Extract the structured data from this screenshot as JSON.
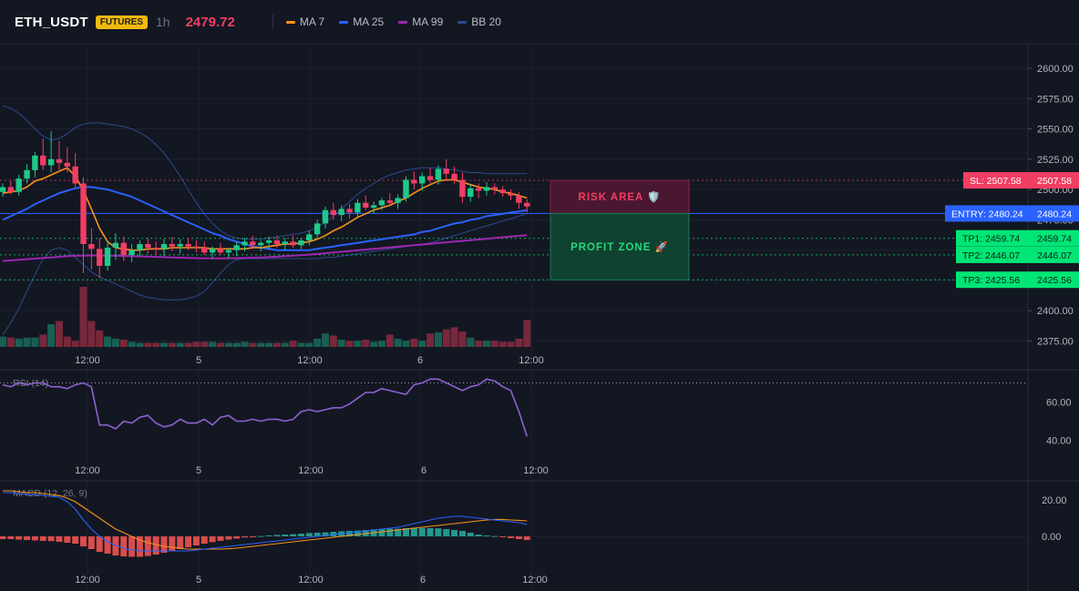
{
  "header": {
    "symbol": "ETH_USDT",
    "market_badge": "FUTURES",
    "timeframe": "1h",
    "last_price": "2479.72"
  },
  "legend": [
    {
      "label": "MA 7",
      "color": "#f7931a"
    },
    {
      "label": "MA 25",
      "color": "#2962ff"
    },
    {
      "label": "MA 99",
      "color": "#9c27b0"
    },
    {
      "label": "BB 20",
      "color": "#2b4a8b"
    }
  ],
  "zones": {
    "risk_label": "RISK AREA 🛡️",
    "profit_label": "PROFIT ZONE 🚀"
  },
  "colors": {
    "up": "#1ec98a",
    "down": "#f23e63",
    "ma7": "#f7931a",
    "ma25": "#2962ff",
    "ma99": "#9c27b0",
    "bb": "#2b4a8b",
    "rsi": "#8d62d1",
    "macd_line": "#2962ff",
    "signal_line": "#f7931a"
  },
  "chart_data": [
    {
      "type": "candlestick",
      "title": "ETH_USDT 1h",
      "x_ticks": [
        "12:00",
        "5",
        "12:00",
        "6",
        "12:00"
      ],
      "y_ticks": [
        "2600.00",
        "2575.00",
        "2550.00",
        "2525.00",
        "2500.00",
        "2475.00",
        "2450.00",
        "2425.00",
        "2400.00",
        "2375.00"
      ],
      "ylim": [
        2365,
        2610
      ],
      "candles": [
        [
          2498,
          2505,
          2494,
          2502
        ],
        [
          2502,
          2507,
          2496,
          2498
        ],
        [
          2498,
          2512,
          2495,
          2509
        ],
        [
          2509,
          2521,
          2505,
          2516
        ],
        [
          2516,
          2531,
          2510,
          2528
        ],
        [
          2528,
          2542,
          2516,
          2520
        ],
        [
          2520,
          2548,
          2514,
          2525
        ],
        [
          2525,
          2540,
          2515,
          2522
        ],
        [
          2522,
          2535,
          2514,
          2519
        ],
        [
          2519,
          2530,
          2502,
          2505
        ],
        [
          2505,
          2510,
          2431,
          2455
        ],
        [
          2455,
          2468,
          2434,
          2451
        ],
        [
          2451,
          2460,
          2427,
          2437
        ],
        [
          2437,
          2458,
          2433,
          2452
        ],
        [
          2452,
          2464,
          2442,
          2456
        ],
        [
          2456,
          2461,
          2441,
          2446
        ],
        [
          2446,
          2455,
          2440,
          2450
        ],
        [
          2450,
          2458,
          2445,
          2455
        ],
        [
          2455,
          2460,
          2447,
          2452
        ],
        [
          2452,
          2457,
          2446,
          2451
        ],
        [
          2451,
          2459,
          2445,
          2455
        ],
        [
          2455,
          2461,
          2449,
          2453
        ],
        [
          2453,
          2459,
          2447,
          2455
        ],
        [
          2455,
          2460,
          2450,
          2453
        ],
        [
          2453,
          2458,
          2448,
          2452
        ],
        [
          2452,
          2457,
          2446,
          2448
        ],
        [
          2448,
          2453,
          2443,
          2451
        ],
        [
          2451,
          2456,
          2446,
          2448
        ],
        [
          2448,
          2452,
          2443,
          2450
        ],
        [
          2450,
          2457,
          2445,
          2454
        ],
        [
          2454,
          2460,
          2449,
          2457
        ],
        [
          2457,
          2462,
          2451,
          2454
        ],
        [
          2454,
          2458,
          2449,
          2456
        ],
        [
          2456,
          2461,
          2451,
          2458
        ],
        [
          2458,
          2462,
          2452,
          2455
        ],
        [
          2455,
          2460,
          2450,
          2457
        ],
        [
          2457,
          2462,
          2452,
          2454
        ],
        [
          2454,
          2460,
          2451,
          2458
        ],
        [
          2458,
          2466,
          2454,
          2463
        ],
        [
          2463,
          2475,
          2459,
          2472
        ],
        [
          2472,
          2486,
          2468,
          2483
        ],
        [
          2483,
          2489,
          2475,
          2479
        ],
        [
          2479,
          2487,
          2474,
          2484
        ],
        [
          2484,
          2488,
          2476,
          2481
        ],
        [
          2481,
          2492,
          2477,
          2489
        ],
        [
          2489,
          2495,
          2483,
          2485
        ],
        [
          2485,
          2490,
          2480,
          2487
        ],
        [
          2487,
          2493,
          2483,
          2491
        ],
        [
          2491,
          2497,
          2486,
          2489
        ],
        [
          2489,
          2496,
          2484,
          2493
        ],
        [
          2493,
          2511,
          2490,
          2508
        ],
        [
          2508,
          2515,
          2500,
          2505
        ],
        [
          2505,
          2514,
          2499,
          2511
        ],
        [
          2511,
          2518,
          2505,
          2508
        ],
        [
          2508,
          2520,
          2504,
          2517
        ],
        [
          2517,
          2525,
          2507,
          2513
        ],
        [
          2513,
          2519,
          2505,
          2508
        ],
        [
          2508,
          2514,
          2489,
          2494
        ],
        [
          2494,
          2504,
          2490,
          2501
        ],
        [
          2501,
          2505,
          2493,
          2499
        ],
        [
          2499,
          2506,
          2495,
          2502
        ],
        [
          2502,
          2505,
          2496,
          2500
        ],
        [
          2500,
          2503,
          2494,
          2497
        ],
        [
          2497,
          2500,
          2491,
          2495
        ],
        [
          2495,
          2498,
          2484,
          2489
        ],
        [
          2489,
          2492,
          2481,
          2486
        ]
      ],
      "ma7": [
        2497,
        2498,
        2499,
        2502,
        2507,
        2509,
        2512,
        2515,
        2518,
        2511,
        2499,
        2484,
        2468,
        2457,
        2452,
        2451,
        2450,
        2450,
        2451,
        2451,
        2451,
        2452,
        2452,
        2452,
        2452,
        2452,
        2451,
        2451,
        2451,
        2451,
        2451,
        2452,
        2452,
        2453,
        2454,
        2455,
        2455,
        2456,
        2457,
        2459,
        2462,
        2466,
        2469,
        2473,
        2477,
        2480,
        2483,
        2485,
        2487,
        2490,
        2493,
        2497,
        2501,
        2504,
        2507,
        2508,
        2508,
        2506,
        2504,
        2502,
        2501,
        2500,
        2498,
        2497,
        2495,
        2493
      ],
      "ma25": [
        2475,
        2478,
        2481,
        2484,
        2488,
        2491,
        2494,
        2497,
        2499,
        2501,
        2502,
        2502,
        2501,
        2500,
        2498,
        2496,
        2494,
        2491,
        2488,
        2485,
        2482,
        2479,
        2476,
        2473,
        2470,
        2467,
        2464,
        2462,
        2459,
        2457,
        2455,
        2453,
        2452,
        2451,
        2450,
        2450,
        2450,
        2450,
        2450,
        2451,
        2452,
        2453,
        2454,
        2455,
        2456,
        2457,
        2458,
        2459,
        2460,
        2461,
        2462,
        2463,
        2465,
        2466,
        2468,
        2470,
        2472,
        2473,
        2475,
        2476,
        2478,
        2479,
        2480,
        2481,
        2482,
        2483
      ],
      "ma99": [
        2441,
        2441.5,
        2442,
        2442.5,
        2443,
        2443.5,
        2444,
        2444.5,
        2445,
        2445.3,
        2445.5,
        2445.6,
        2445.6,
        2445.5,
        2445.4,
        2445.2,
        2445,
        2444.8,
        2444.6,
        2444.4,
        2444.2,
        2444,
        2443.8,
        2443.6,
        2443.4,
        2443.3,
        2443.2,
        2443.2,
        2443.3,
        2443.4,
        2443.6,
        2443.8,
        2444,
        2444.3,
        2444.6,
        2445,
        2445.4,
        2445.8,
        2446.3,
        2446.8,
        2447.4,
        2448,
        2448.6,
        2449.2,
        2449.8,
        2450.4,
        2451,
        2451.6,
        2452.2,
        2452.8,
        2453.4,
        2454,
        2454.6,
        2455.2,
        2455.8,
        2456.4,
        2457,
        2457.6,
        2458.2,
        2458.8,
        2459.4,
        2460,
        2460.6,
        2461.2,
        2461.8,
        2462.4
      ],
      "bb_upper": [
        2569,
        2567,
        2563,
        2557,
        2550,
        2544,
        2541,
        2542,
        2546,
        2551,
        2554,
        2555,
        2555,
        2554,
        2553,
        2552,
        2550,
        2547,
        2543,
        2537,
        2530,
        2521,
        2511,
        2500,
        2489,
        2480,
        2472,
        2466,
        2462,
        2460,
        2459,
        2459,
        2459,
        2460,
        2461,
        2462,
        2463,
        2464,
        2466,
        2469,
        2473,
        2478,
        2484,
        2490,
        2496,
        2501,
        2505,
        2509,
        2512,
        2514,
        2516,
        2517,
        2518,
        2518,
        2518,
        2517,
        2516,
        2515,
        2514,
        2514,
        2513,
        2513,
        2513,
        2513,
        2513,
        2513
      ],
      "bb_lower": [
        2380,
        2390,
        2402,
        2416,
        2430,
        2443,
        2450,
        2452,
        2450,
        2444,
        2438,
        2432,
        2428,
        2425,
        2422,
        2419,
        2416,
        2413,
        2411,
        2410,
        2409,
        2409,
        2409,
        2410,
        2412,
        2416,
        2423,
        2431,
        2438,
        2442,
        2443,
        2443,
        2443,
        2443,
        2443,
        2443,
        2443,
        2443,
        2443,
        2443,
        2444,
        2444,
        2445,
        2446,
        2447,
        2448,
        2449,
        2450,
        2451,
        2452,
        2453,
        2454,
        2455,
        2456,
        2458,
        2460,
        2462,
        2464,
        2466,
        2468,
        2470,
        2472,
        2474,
        2476,
        2478,
        2480
      ],
      "volume": [
        10,
        9,
        8,
        9,
        9,
        12,
        22,
        25,
        10,
        6,
        58,
        25,
        16,
        10,
        8,
        7,
        5,
        4,
        4,
        4,
        4,
        4,
        4,
        4,
        5,
        5,
        5,
        4,
        4,
        4,
        5,
        4,
        4,
        4,
        4,
        4,
        6,
        4,
        4,
        8,
        13,
        11,
        7,
        6,
        6,
        7,
        5,
        6,
        12,
        8,
        6,
        8,
        6,
        13,
        14,
        17,
        19,
        15,
        9,
        6,
        6,
        6,
        5,
        5,
        8,
        26
      ],
      "volume_max": 58,
      "levels": [
        {
          "label": "SL: 2507.58",
          "value": 2507.58,
          "price_text": "2507.58",
          "color": "#f23e63",
          "style": "dotted"
        },
        {
          "label": "ENTRY: 2480.24",
          "value": 2480.24,
          "price_text": "2480.24",
          "color": "#2962ff",
          "style": "solid"
        },
        {
          "label": "TP1: 2459.74",
          "value": 2459.74,
          "price_text": "2459.74",
          "color": "#00e676",
          "style": "dotted"
        },
        {
          "label": "TP2: 2446.07",
          "value": 2446.07,
          "price_text": "2446.07",
          "color": "#00e676",
          "style": "dotted"
        },
        {
          "label": "TP3: 2425.56",
          "value": 2425.56,
          "price_text": "2425.56",
          "color": "#00e676",
          "style": "dotted"
        }
      ]
    },
    {
      "type": "line",
      "title": "RSI (14)",
      "y_ticks": [
        "60.00",
        "40.00"
      ],
      "ylim": [
        30,
        80
      ],
      "overbought": 70,
      "values": [
        69,
        68,
        70,
        69,
        70,
        70,
        68,
        68,
        67,
        69,
        70,
        68,
        48,
        48,
        46,
        50,
        49,
        52,
        53,
        49,
        47,
        48,
        51,
        49,
        49,
        51,
        48,
        52,
        53,
        50,
        50,
        51,
        50,
        51,
        51,
        50,
        51,
        55,
        56,
        55,
        56,
        57,
        57,
        59,
        62,
        65,
        65,
        67,
        66,
        65,
        64,
        69,
        70,
        72,
        72,
        70,
        68,
        66,
        68,
        69,
        72,
        71,
        68,
        66,
        55,
        42
      ]
    },
    {
      "type": "bar",
      "title": "MACD (12, 26, 9)",
      "y_ticks": [
        "20.00",
        "0.00"
      ],
      "ylim": [
        -17,
        27
      ],
      "histogram": [
        -1.5,
        -1.5,
        -1.8,
        -2.0,
        -2.2,
        -2.5,
        -2.6,
        -3.0,
        -3.5,
        -4.0,
        -5.5,
        -7.0,
        -8.5,
        -9.5,
        -10.5,
        -11.0,
        -11.2,
        -11.2,
        -10.8,
        -10.0,
        -9.0,
        -8.0,
        -7.0,
        -6.0,
        -5.0,
        -4.0,
        -3.2,
        -2.5,
        -1.8,
        -1.2,
        -0.6,
        -0.2,
        0.2,
        0.5,
        0.8,
        1.0,
        1.2,
        1.5,
        1.8,
        2.0,
        2.2,
        2.5,
        2.8,
        3.0,
        3.2,
        3.5,
        3.8,
        4.0,
        4.2,
        4.2,
        4.5,
        4.8,
        4.6,
        4.5,
        4.4,
        4.0,
        3.5,
        3.0,
        2.0,
        1.0,
        0.5,
        0.2,
        -0.5,
        -1.0,
        -1.5,
        -2.0
      ],
      "macd_line": [
        24,
        24,
        23.5,
        23,
        23,
        22.5,
        22,
        21.5,
        19,
        15,
        9,
        4,
        0,
        -3,
        -5,
        -6.5,
        -7.5,
        -8,
        -8,
        -8,
        -8,
        -8,
        -8,
        -8,
        -7.5,
        -7,
        -6.5,
        -6,
        -5.5,
        -5,
        -4.5,
        -4,
        -3.5,
        -3,
        -2.5,
        -2,
        -1.5,
        -1,
        -0.5,
        0,
        0.5,
        1,
        1.5,
        2,
        2.5,
        3,
        3.5,
        4,
        4.5,
        5,
        6,
        7,
        8,
        9,
        10,
        10.5,
        11,
        11,
        10.5,
        10,
        9.5,
        9,
        8.5,
        8,
        7.5,
        6.5
      ],
      "signal_line": [
        25,
        25,
        24.5,
        24,
        24,
        23.5,
        23,
        22.5,
        21,
        19,
        16,
        13,
        10,
        7,
        4,
        2,
        0,
        -2,
        -3.5,
        -4.5,
        -5.5,
        -6,
        -6.5,
        -7,
        -7,
        -7,
        -7,
        -7,
        -6.8,
        -6.5,
        -6,
        -5.5,
        -5,
        -4.5,
        -4,
        -3.5,
        -3,
        -2.5,
        -2,
        -1.5,
        -1,
        -0.5,
        0,
        0.5,
        1,
        1.5,
        2,
        2.5,
        3,
        3.5,
        4,
        4.5,
        5,
        5.5,
        6,
        6.5,
        7,
        7.5,
        8,
        8.5,
        9,
        9.3,
        9.3,
        9,
        8.8,
        8.5
      ]
    }
  ]
}
